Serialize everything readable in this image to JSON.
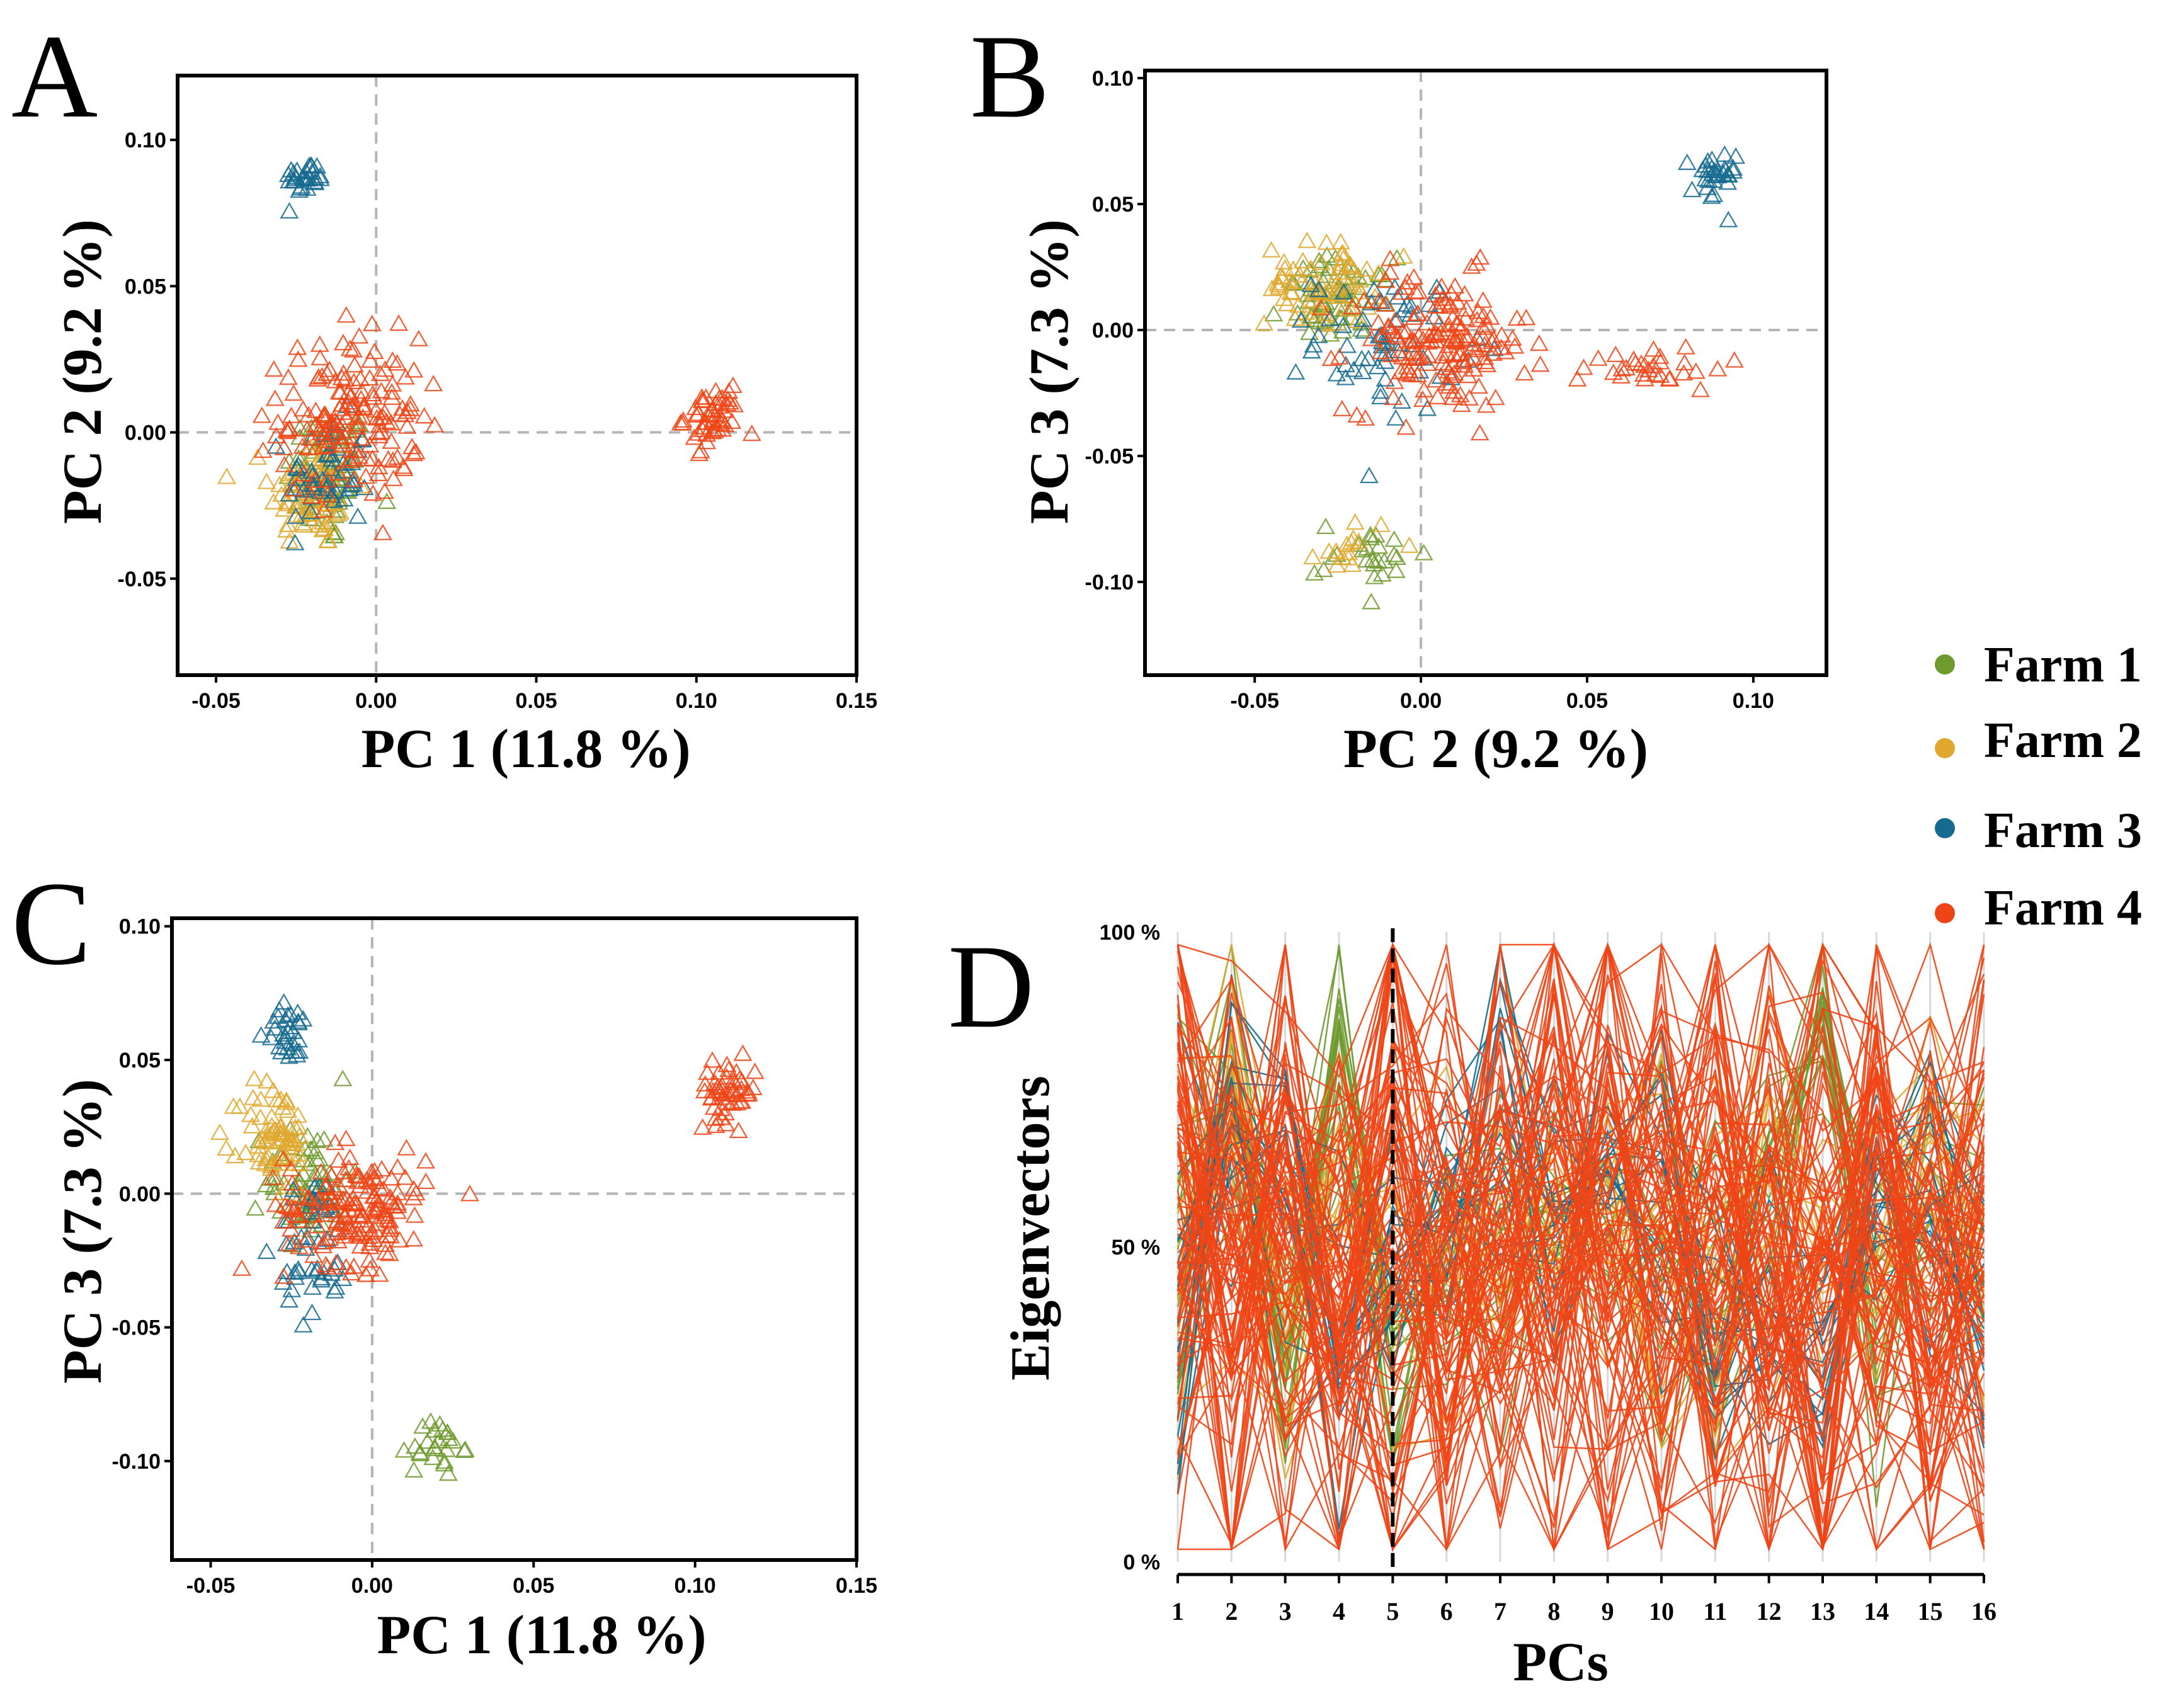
{
  "legend": [
    {
      "label": "Farm 1",
      "color": "#6e9a2e"
    },
    {
      "label": "Farm 2",
      "color": "#e0a82e"
    },
    {
      "label": "Farm 3",
      "color": "#156a8f"
    },
    {
      "label": "Farm 4",
      "color": "#ee4516"
    }
  ],
  "chart_data": [
    {
      "panel": "A",
      "type": "scatter",
      "marker": "open-triangle",
      "xlabel": "PC 1 (11.8 %)",
      "ylabel": "PC 2 (9.2 %)",
      "xlim": [
        -0.062,
        0.15
      ],
      "ylim": [
        -0.083,
        0.122
      ],
      "xticks": [
        -0.05,
        0.0,
        0.05,
        0.1,
        0.15
      ],
      "xtick_labels": [
        "-0.05",
        "0.00",
        "0.05",
        "0.10",
        "0.15"
      ],
      "yticks": [
        -0.05,
        0.0,
        0.05,
        0.1
      ],
      "ytick_labels": [
        "-0.05",
        "0.00",
        "0.05",
        "0.10"
      ],
      "reference_lines": {
        "x": 0,
        "y": 0
      },
      "clusters": [
        {
          "series": "Farm 1",
          "center": [
            -0.015,
            -0.015
          ],
          "spread": [
            0.012,
            0.022
          ],
          "n": 70
        },
        {
          "series": "Farm 2",
          "center": [
            -0.02,
            -0.02
          ],
          "spread": [
            0.012,
            0.018
          ],
          "n": 80
        },
        {
          "series": "Farm 3",
          "center": [
            -0.022,
            0.087
          ],
          "spread": [
            0.006,
            0.005
          ],
          "n": 30
        },
        {
          "series": "Farm 3",
          "center": [
            -0.015,
            -0.015
          ],
          "spread": [
            0.012,
            0.018
          ],
          "n": 50
        },
        {
          "series": "Farm 4",
          "center": [
            -0.008,
            0.005
          ],
          "spread": [
            0.02,
            0.025
          ],
          "n": 160
        },
        {
          "series": "Farm 4",
          "center": [
            0.105,
            0.005
          ],
          "spread": [
            0.008,
            0.009
          ],
          "n": 50
        }
      ]
    },
    {
      "panel": "B",
      "type": "scatter",
      "marker": "open-triangle",
      "xlabel": "PC 2 (9.2 %)",
      "ylabel": "PC 3 (7.3 %)",
      "xlim": [
        -0.083,
        0.122
      ],
      "ylim": [
        -0.137,
        0.103
      ],
      "xticks": [
        -0.05,
        0.0,
        0.05,
        0.1
      ],
      "xtick_labels": [
        "-0.05",
        "0.00",
        "0.05",
        "0.10"
      ],
      "yticks": [
        -0.1,
        -0.05,
        0.0,
        0.05,
        0.1
      ],
      "ytick_labels": [
        "-0.10",
        "-0.05",
        "0.00",
        "0.05",
        "0.10"
      ],
      "reference_lines": {
        "x": 0,
        "y": 0
      },
      "clusters": [
        {
          "series": "Farm 1",
          "center": [
            -0.025,
            0.012
          ],
          "spread": [
            0.015,
            0.015
          ],
          "n": 60
        },
        {
          "series": "Farm 1",
          "center": [
            -0.015,
            -0.09
          ],
          "spread": [
            0.015,
            0.012
          ],
          "n": 25
        },
        {
          "series": "Farm 2",
          "center": [
            -0.03,
            0.018
          ],
          "spread": [
            0.015,
            0.015
          ],
          "n": 70
        },
        {
          "series": "Farm 2",
          "center": [
            -0.02,
            -0.085
          ],
          "spread": [
            0.01,
            0.01
          ],
          "n": 15
        },
        {
          "series": "Farm 3",
          "center": [
            -0.01,
            -0.005
          ],
          "spread": [
            0.02,
            0.025
          ],
          "n": 60
        },
        {
          "series": "Farm 3",
          "center": [
            0.088,
            0.06
          ],
          "spread": [
            0.006,
            0.01
          ],
          "n": 30
        },
        {
          "series": "Farm 4",
          "center": [
            0.005,
            -0.005
          ],
          "spread": [
            0.025,
            0.025
          ],
          "n": 160
        },
        {
          "series": "Farm 4",
          "center": [
            0.07,
            -0.015
          ],
          "spread": [
            0.02,
            0.008
          ],
          "n": 30
        }
      ]
    },
    {
      "panel": "C",
      "type": "scatter",
      "marker": "open-triangle",
      "xlabel": "PC 1 (11.8 %)",
      "ylabel": "PC 3 (7.3 %)",
      "xlim": [
        -0.062,
        0.15
      ],
      "ylim": [
        -0.137,
        0.103
      ],
      "xticks": [
        -0.05,
        0.0,
        0.05,
        0.1,
        0.15
      ],
      "xtick_labels": [
        "-0.05",
        "0.00",
        "0.05",
        "0.10",
        "0.15"
      ],
      "yticks": [
        -0.1,
        -0.05,
        0.0,
        0.05,
        0.1
      ],
      "ytick_labels": [
        "-0.10",
        "-0.05",
        "0.00",
        "0.05",
        "0.10"
      ],
      "reference_lines": {
        "x": 0,
        "y": 0
      },
      "clusters": [
        {
          "series": "Farm 1",
          "center": [
            -0.02,
            0.005
          ],
          "spread": [
            0.012,
            0.02
          ],
          "n": 60
        },
        {
          "series": "Farm 1",
          "center": [
            0.02,
            -0.095
          ],
          "spread": [
            0.007,
            0.01
          ],
          "n": 25
        },
        {
          "series": "Farm 2",
          "center": [
            -0.03,
            0.02
          ],
          "spread": [
            0.01,
            0.02
          ],
          "n": 70
        },
        {
          "series": "Farm 3",
          "center": [
            -0.025,
            0.06
          ],
          "spread": [
            0.007,
            0.01
          ],
          "n": 30
        },
        {
          "series": "Farm 3",
          "center": [
            -0.018,
            -0.02
          ],
          "spread": [
            0.01,
            0.025
          ],
          "n": 50
        },
        {
          "series": "Farm 4",
          "center": [
            -0.005,
            -0.005
          ],
          "spread": [
            0.02,
            0.02
          ],
          "n": 160
        },
        {
          "series": "Farm 4",
          "center": [
            0.11,
            0.038
          ],
          "spread": [
            0.008,
            0.01
          ],
          "n": 50
        }
      ]
    },
    {
      "panel": "D",
      "type": "line",
      "style": "parallel-coordinates",
      "xlabel": "PCs",
      "ylabel": "Eigenvectors",
      "x_categories": [
        "1",
        "2",
        "3",
        "4",
        "5",
        "6",
        "7",
        "8",
        "9",
        "10",
        "11",
        "12",
        "13",
        "14",
        "15",
        "16"
      ],
      "ylim": [
        0,
        100
      ],
      "yticks": [
        0,
        50,
        100
      ],
      "ytick_labels": [
        "0 %",
        "50 %",
        "100 %"
      ],
      "marked_pc": "5",
      "series": [
        {
          "name": "Farm 1",
          "median_percent": [
            50,
            78,
            35,
            82,
            30,
            45,
            50,
            55,
            50,
            48,
            45,
            60,
            85,
            45,
            55,
            55
          ],
          "range_percent": [
            18,
            14,
            14,
            12,
            12,
            12,
            15,
            10,
            10,
            14,
            14,
            15,
            10,
            14,
            14,
            12
          ],
          "n_lines": 18
        },
        {
          "name": "Farm 2",
          "median_percent": [
            45,
            75,
            40,
            60,
            50,
            45,
            55,
            50,
            55,
            45,
            40,
            55,
            50,
            50,
            60,
            55
          ],
          "range_percent": [
            20,
            18,
            15,
            15,
            12,
            15,
            18,
            12,
            12,
            18,
            18,
            15,
            15,
            15,
            15,
            15
          ],
          "n_lines": 18
        },
        {
          "name": "Farm 3",
          "median_percent": [
            40,
            70,
            60,
            35,
            45,
            55,
            75,
            50,
            65,
            60,
            40,
            40,
            30,
            60,
            55,
            45
          ],
          "range_percent": [
            20,
            15,
            15,
            14,
            12,
            15,
            15,
            12,
            12,
            15,
            12,
            12,
            12,
            14,
            14,
            14
          ],
          "n_lines": 18
        },
        {
          "name": "Farm 4",
          "median_percent": [
            55,
            45,
            55,
            40,
            60,
            45,
            50,
            55,
            50,
            50,
            55,
            50,
            45,
            55,
            45,
            50
          ],
          "range_percent": [
            30,
            30,
            30,
            25,
            35,
            30,
            28,
            30,
            30,
            28,
            30,
            28,
            30,
            28,
            30,
            28
          ],
          "n_lines": 90
        }
      ]
    }
  ],
  "panels": {
    "A": {
      "letter": "A"
    },
    "B": {
      "letter": "B"
    },
    "C": {
      "letter": "C"
    },
    "D": {
      "letter": "D"
    }
  }
}
